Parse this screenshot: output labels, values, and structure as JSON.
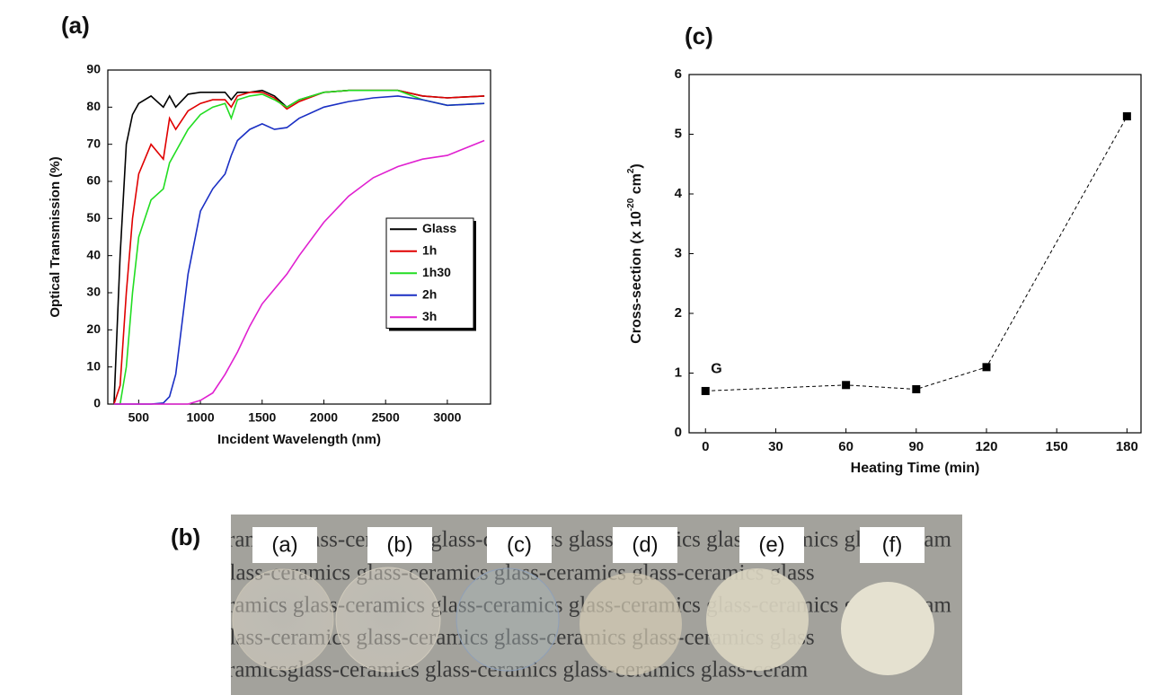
{
  "chart_data": [
    {
      "type": "line",
      "label": "(a)",
      "xlabel": "Incident Wavelength (nm)",
      "ylabel": "Optical Transmission (%)",
      "x": [
        300,
        350,
        400,
        450,
        500,
        600,
        700,
        750,
        800,
        900,
        1000,
        1100,
        1200,
        1250,
        1300,
        1400,
        1500,
        1600,
        1700,
        1800,
        2000,
        2200,
        2400,
        2600,
        2800,
        3000,
        3300
      ],
      "series": [
        {
          "name": "Glass",
          "color": "#000000",
          "values": [
            0,
            40,
            70,
            78,
            81,
            83,
            80,
            83,
            80,
            83.5,
            84,
            84,
            84,
            82,
            84,
            84,
            84.5,
            83,
            80,
            82,
            84,
            84.5,
            84.5,
            84.5,
            83,
            82.5,
            83
          ]
        },
        {
          "name": "1h",
          "color": "#e00000",
          "values": [
            0,
            5,
            30,
            50,
            62,
            70,
            66,
            77,
            74,
            79,
            81,
            82,
            82,
            80,
            83,
            84,
            84,
            82.5,
            79.5,
            81.5,
            84,
            84.5,
            84.5,
            84.5,
            83,
            82.5,
            83
          ]
        },
        {
          "name": "1h30",
          "color": "#22dd22",
          "values": [
            0,
            0,
            10,
            30,
            45,
            55,
            58,
            65,
            68,
            74,
            78,
            80,
            81,
            77,
            82,
            83,
            83.5,
            82,
            80,
            82,
            84,
            84.5,
            84.5,
            84.5,
            82,
            80.5,
            81
          ]
        },
        {
          "name": "2h",
          "color": "#1a2fc4",
          "values": [
            0,
            0,
            0,
            0,
            0,
            0,
            0.3,
            2,
            8,
            35,
            52,
            58,
            62,
            67,
            71,
            74,
            75.5,
            74,
            74.5,
            77,
            80,
            81.5,
            82.5,
            83,
            82,
            80.5,
            81
          ]
        },
        {
          "name": "3h",
          "color": "#e020d0",
          "values": [
            0,
            0,
            0,
            0,
            0,
            0,
            0,
            0,
            0,
            0,
            1,
            3,
            8,
            11,
            14,
            21,
            27,
            31,
            35,
            40,
            49,
            56,
            61,
            64,
            66,
            67,
            71
          ]
        }
      ],
      "xlim": [
        250,
        3350
      ],
      "ylim": [
        0,
        90
      ],
      "xticks": [
        500,
        1000,
        1500,
        2000,
        2500,
        3000
      ],
      "yticks": [
        0,
        10,
        20,
        30,
        40,
        50,
        60,
        70,
        80,
        90
      ],
      "legend": "right"
    },
    {
      "type": "line",
      "label": "(c)",
      "xlabel": "Heating Time (min)",
      "ylabel": [
        "Cross-section (x 10",
        "-20",
        " cm",
        "2",
        ")"
      ],
      "x": [
        0,
        60,
        90,
        120,
        180
      ],
      "series": [
        {
          "color": "#000000",
          "values": [
            0.7,
            0.8,
            0.73,
            1.1,
            5.3
          ]
        }
      ],
      "linestyle": "dashed",
      "marker": "square",
      "annotation": "G",
      "xlim": [
        -7,
        186
      ],
      "ylim": [
        0,
        6
      ],
      "xticks": [
        0,
        30,
        60,
        90,
        120,
        150,
        180
      ],
      "yticks": [
        0,
        1,
        2,
        3,
        4,
        5,
        6
      ]
    }
  ],
  "photo": {
    "label": "(b)",
    "sample_labels": [
      "(a)",
      "(b)",
      "(c)",
      "(d)",
      "(e)",
      "(f)"
    ],
    "text_rows": [
      "ramics glass-ceramics glass-ceramics glass-ceramics glass-ceramics glass-ceram",
      "glass-ceramics  glass-ceramics  glass-ceramics  glass-ceramics  glass",
      "ramics glass-ceramics glass-ceramics glass-ceramics glass-ceramics glass-ceram",
      "glass-ceramics  glass-ceramics  glass-ceramics  glass-ceramics  glass",
      "ramicsglass-ceramics  glass-ceramics  glass-ceramics  glass-ceram"
    ]
  }
}
